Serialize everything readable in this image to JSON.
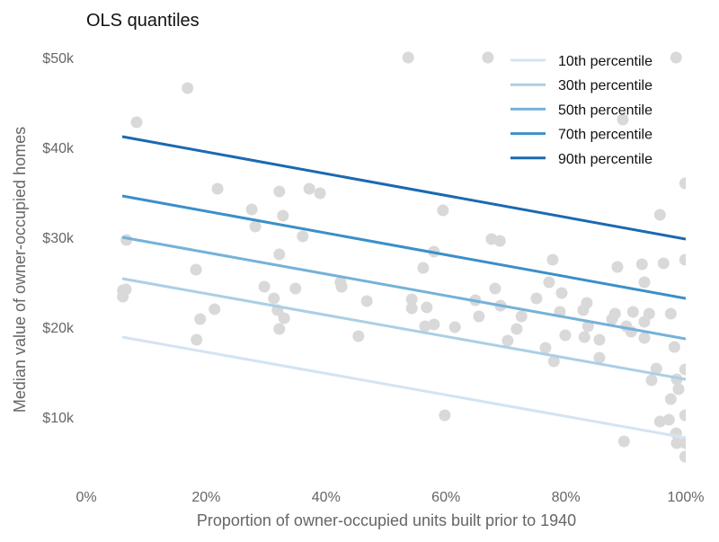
{
  "chart_data": {
    "type": "scatter",
    "title": "OLS quantiles",
    "xlabel": "Proportion of owner-occupied units built prior to 1940",
    "ylabel": "Median value of owner-occupied homes",
    "xlim": [
      0,
      100
    ],
    "ylim": [
      0,
      50
    ],
    "x_ticks": [
      {
        "value": 0,
        "label": "0%"
      },
      {
        "value": 20,
        "label": "20%"
      },
      {
        "value": 40,
        "label": "40%"
      },
      {
        "value": 60,
        "label": "60%"
      },
      {
        "value": 80,
        "label": "80%"
      },
      {
        "value": 100,
        "label": "100%"
      }
    ],
    "y_ticks": [
      {
        "value": 10,
        "label": "$10k"
      },
      {
        "value": 20,
        "label": "$20k"
      },
      {
        "value": 30,
        "label": "$30k"
      },
      {
        "value": 40,
        "label": "$40k"
      },
      {
        "value": 50,
        "label": "$50k"
      }
    ],
    "grid": false,
    "legend_position": "top-right",
    "point_color": "#d9d9d9",
    "points": [
      [
        16.9,
        46.6
      ],
      [
        8.4,
        42.8
      ],
      [
        21.9,
        35.4
      ],
      [
        32.2,
        35.1
      ],
      [
        37.2,
        35.4
      ],
      [
        39.0,
        34.9
      ],
      [
        27.6,
        33.1
      ],
      [
        32.8,
        32.4
      ],
      [
        28.2,
        31.2
      ],
      [
        36.1,
        30.1
      ],
      [
        6.7,
        29.7
      ],
      [
        32.2,
        28.1
      ],
      [
        18.3,
        26.4
      ],
      [
        29.7,
        24.5
      ],
      [
        34.9,
        24.3
      ],
      [
        42.4,
        25.0
      ],
      [
        42.6,
        24.5
      ],
      [
        6.1,
        24.1
      ],
      [
        6.6,
        24.2
      ],
      [
        6.1,
        23.4
      ],
      [
        31.3,
        23.2
      ],
      [
        46.8,
        22.9
      ],
      [
        21.4,
        22.0
      ],
      [
        19.0,
        20.9
      ],
      [
        31.9,
        21.9
      ],
      [
        33.0,
        21.0
      ],
      [
        32.2,
        19.8
      ],
      [
        18.4,
        18.6
      ],
      [
        45.4,
        19.0
      ],
      [
        53.7,
        50
      ],
      [
        67.0,
        50
      ],
      [
        98.4,
        50
      ],
      [
        89.5,
        43.1
      ],
      [
        99.9,
        36.0
      ],
      [
        59.5,
        33.0
      ],
      [
        95.7,
        32.5
      ],
      [
        67.6,
        29.8
      ],
      [
        69.0,
        29.6
      ],
      [
        58.0,
        28.4
      ],
      [
        77.8,
        27.5
      ],
      [
        99.9,
        27.5
      ],
      [
        56.2,
        26.6
      ],
      [
        88.6,
        26.7
      ],
      [
        92.7,
        27.0
      ],
      [
        96.3,
        27.1
      ],
      [
        93.1,
        25.0
      ],
      [
        77.2,
        25.0
      ],
      [
        68.2,
        24.3
      ],
      [
        79.3,
        23.8
      ],
      [
        54.3,
        23.1
      ],
      [
        54.3,
        22.1
      ],
      [
        64.9,
        23.0
      ],
      [
        69.1,
        22.4
      ],
      [
        56.8,
        22.2
      ],
      [
        75.1,
        23.2
      ],
      [
        83.5,
        22.7
      ],
      [
        82.9,
        21.9
      ],
      [
        79.0,
        21.7
      ],
      [
        72.6,
        21.2
      ],
      [
        65.5,
        21.2
      ],
      [
        88.2,
        21.5
      ],
      [
        87.7,
        20.9
      ],
      [
        91.2,
        21.7
      ],
      [
        93.9,
        21.5
      ],
      [
        97.5,
        21.5
      ],
      [
        56.5,
        20.1
      ],
      [
        58.0,
        20.3
      ],
      [
        61.5,
        20.0
      ],
      [
        83.7,
        20.1
      ],
      [
        90.1,
        20.1
      ],
      [
        90.9,
        19.5
      ],
      [
        93.1,
        20.6
      ],
      [
        71.8,
        19.8
      ],
      [
        79.9,
        19.1
      ],
      [
        83.1,
        18.9
      ],
      [
        85.6,
        18.6
      ],
      [
        93.1,
        18.8
      ],
      [
        70.3,
        18.5
      ],
      [
        76.6,
        17.7
      ],
      [
        98.1,
        17.8
      ],
      [
        78.0,
        16.2
      ],
      [
        85.6,
        16.6
      ],
      [
        95.1,
        15.4
      ],
      [
        94.3,
        14.1
      ],
      [
        99.9,
        15.3
      ],
      [
        98.5,
        14.2
      ],
      [
        98.8,
        13.1
      ],
      [
        97.5,
        12.0
      ],
      [
        99.9,
        10.2
      ],
      [
        95.7,
        9.5
      ],
      [
        97.2,
        9.7
      ],
      [
        98.4,
        8.2
      ],
      [
        98.5,
        7.1
      ],
      [
        99.9,
        7.1
      ],
      [
        99.9,
        5.6
      ],
      [
        59.8,
        10.2
      ],
      [
        89.7,
        7.3
      ]
    ],
    "series": [
      {
        "name": "10th percentile",
        "color": "#d3e4f3",
        "x": [
          6,
          100
        ],
        "y": [
          18.9,
          7.7
        ]
      },
      {
        "name": "30th percentile",
        "color": "#abcfe6",
        "x": [
          6,
          100
        ],
        "y": [
          25.4,
          14.2
        ]
      },
      {
        "name": "50th percentile",
        "color": "#74b2d9",
        "x": [
          6,
          100
        ],
        "y": [
          30.0,
          18.7
        ]
      },
      {
        "name": "70th percentile",
        "color": "#3b8fc9",
        "x": [
          6,
          100
        ],
        "y": [
          34.6,
          23.2
        ]
      },
      {
        "name": "90th percentile",
        "color": "#1a69b1",
        "x": [
          6,
          100
        ],
        "y": [
          41.2,
          29.8
        ]
      }
    ]
  }
}
